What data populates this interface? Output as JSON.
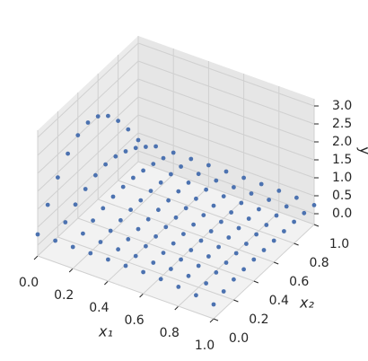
{
  "chart_data": {
    "type": "scatter3d",
    "x_label": "x₁",
    "y_label": "x₂",
    "z_label": "y",
    "color": "#4c72b0",
    "xlim": [
      0,
      1
    ],
    "ylim": [
      0,
      1
    ],
    "zlim": [
      -0.3,
      3.2
    ],
    "xticks": [
      {
        "value": 0,
        "label": "0.0"
      },
      0.2,
      0.4,
      0.6,
      0.8,
      {
        "value": 1,
        "label": "1.0"
      }
    ],
    "yticks": [
      {
        "value": 0,
        "label": "0.0"
      },
      0.2,
      0.4,
      0.6,
      0.8,
      {
        "value": 1,
        "label": "1.0"
      }
    ],
    "zticks": [
      {
        "value": 0,
        "label": "0.0"
      },
      0.5,
      {
        "value": 1,
        "label": "1.0"
      },
      1.5,
      {
        "value": 2,
        "label": "2.0"
      },
      2.5,
      {
        "value": 3,
        "label": "3.0"
      }
    ],
    "grid": true,
    "x": [
      0,
      0,
      0,
      0,
      0,
      0,
      0,
      0,
      0,
      0,
      0,
      0.1,
      0.1,
      0.1,
      0.1,
      0.1,
      0.1,
      0.1,
      0.1,
      0.1,
      0.1,
      0.1,
      0.2,
      0.2,
      0.2,
      0.2,
      0.2,
      0.2,
      0.2,
      0.2,
      0.2,
      0.2,
      0.2,
      0.3,
      0.3,
      0.3,
      0.3,
      0.3,
      0.3,
      0.3,
      0.3,
      0.3,
      0.3,
      0.3,
      0.4,
      0.4,
      0.4,
      0.4,
      0.4,
      0.4,
      0.4,
      0.4,
      0.4,
      0.4,
      0.4,
      0.5,
      0.5,
      0.5,
      0.5,
      0.5,
      0.5,
      0.5,
      0.5,
      0.5,
      0.5,
      0.5,
      0.6,
      0.6,
      0.6,
      0.6,
      0.6,
      0.6,
      0.6,
      0.6,
      0.6,
      0.6,
      0.6,
      0.7,
      0.7,
      0.7,
      0.7,
      0.7,
      0.7,
      0.7,
      0.7,
      0.7,
      0.7,
      0.7,
      0.8,
      0.8,
      0.8,
      0.8,
      0.8,
      0.8,
      0.8,
      0.8,
      0.8,
      0.8,
      0.8,
      0.9,
      0.9,
      0.9,
      0.9,
      0.9,
      0.9,
      0.9,
      0.9,
      0.9,
      0.9,
      0.9,
      1,
      1,
      1,
      1,
      1,
      1,
      1,
      1,
      1,
      1,
      1
    ],
    "y": [
      0,
      0.1,
      0.2,
      0.3,
      0.4,
      0.5,
      0.6,
      0.7,
      0.8,
      0.9,
      1,
      0,
      0.1,
      0.2,
      0.3,
      0.4,
      0.5,
      0.6,
      0.7,
      0.8,
      0.9,
      1,
      0,
      0.1,
      0.2,
      0.3,
      0.4,
      0.5,
      0.6,
      0.7,
      0.8,
      0.9,
      1,
      0,
      0.1,
      0.2,
      0.3,
      0.4,
      0.5,
      0.6,
      0.7,
      0.8,
      0.9,
      1,
      0,
      0.1,
      0.2,
      0.3,
      0.4,
      0.5,
      0.6,
      0.7,
      0.8,
      0.9,
      1,
      0,
      0.1,
      0.2,
      0.3,
      0.4,
      0.5,
      0.6,
      0.7,
      0.8,
      0.9,
      1,
      0,
      0.1,
      0.2,
      0.3,
      0.4,
      0.5,
      0.6,
      0.7,
      0.8,
      0.9,
      1,
      0,
      0.1,
      0.2,
      0.3,
      0.4,
      0.5,
      0.6,
      0.7,
      0.8,
      0.9,
      1,
      0,
      0.1,
      0.2,
      0.3,
      0.4,
      0.5,
      0.6,
      0.7,
      0.8,
      0.9,
      1,
      0,
      0.1,
      0.2,
      0.3,
      0.4,
      0.5,
      0.6,
      0.7,
      0.8,
      0.9,
      1,
      0,
      0.1,
      0.2,
      0.3,
      0.4,
      0.5,
      0.6,
      0.7,
      0.8,
      0.9,
      1
    ],
    "z": [
      0.3,
      0.86,
      1.36,
      1.76,
      2.01,
      2.1,
      2.01,
      1.76,
      1.36,
      0.86,
      0.3,
      0.3,
      0.55,
      0.78,
      0.95,
      1.07,
      1.11,
      1.07,
      0.95,
      0.78,
      0.55,
      0.3,
      0.3,
      0.41,
      0.51,
      0.59,
      0.65,
      0.66,
      0.65,
      0.59,
      0.51,
      0.41,
      0.3,
      0.3,
      0.35,
      0.4,
      0.43,
      0.46,
      0.46,
      0.46,
      0.43,
      0.4,
      0.35,
      0.3,
      0.3,
      0.32,
      0.34,
      0.36,
      0.37,
      0.37,
      0.37,
      0.36,
      0.34,
      0.32,
      0.3,
      0.3,
      0.31,
      0.32,
      0.33,
      0.33,
      0.33,
      0.33,
      0.33,
      0.32,
      0.31,
      0.3,
      0.3,
      0.3,
      0.31,
      0.31,
      0.31,
      0.31,
      0.31,
      0.31,
      0.31,
      0.3,
      0.3,
      0.28,
      0.3,
      0.3,
      0.3,
      0.3,
      0.3,
      0.3,
      0.3,
      0.3,
      0.3,
      0.3,
      0.24,
      0.28,
      0.3,
      0.3,
      0.3,
      0.3,
      0.3,
      0.3,
      0.3,
      0.3,
      0.29,
      0.18,
      0.25,
      0.29,
      0.3,
      0.3,
      0.3,
      0.3,
      0.3,
      0.3,
      0.29,
      0.27,
      0.1,
      0.2,
      0.27,
      0.29,
      0.3,
      0.3,
      0.3,
      0.3,
      0.3,
      0.28,
      0.24
    ]
  }
}
